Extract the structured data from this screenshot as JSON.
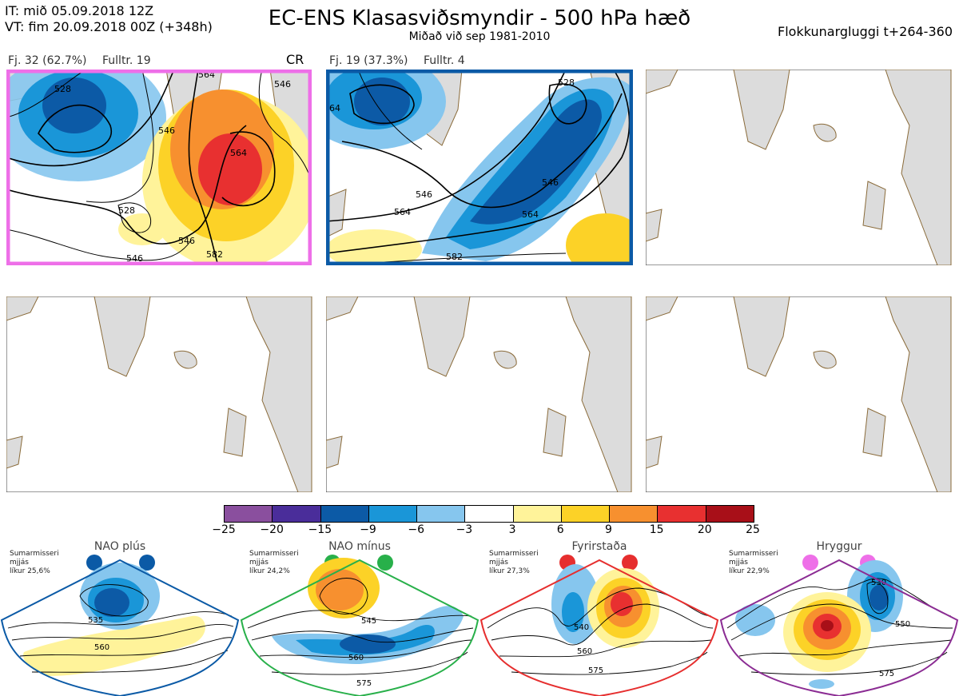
{
  "header": {
    "it_line": "IT: mið 05.09.2018 12Z",
    "vt_line": "VT: fim 20.09.2018 00Z  (+348h)",
    "title": "EC-ENS Klasasviðsmyndir - 500 hPa hæð",
    "subtitle": "Miðað við sep 1981-2010",
    "window": "Flokkunargluggi t+264-360"
  },
  "panels": [
    {
      "label": "Fj. 32 (62.7%)",
      "fulltr": "Fulltr. 19",
      "tag": "CR",
      "frame_color": "#ee6fe8",
      "contour_labels": [
        "528",
        "546",
        "564",
        "528",
        "546",
        "546",
        "564",
        "582",
        "546"
      ]
    },
    {
      "label": "Fj. 19 (37.3%)",
      "fulltr": "Fulltr. 4",
      "tag": "",
      "frame_color": "#0b5aa6",
      "contour_labels": [
        "528",
        "546",
        "546",
        "564",
        "564",
        "582",
        "64"
      ]
    }
  ],
  "colorbar": {
    "ticks": [
      "−25",
      "−20",
      "−15",
      "−9",
      "−6",
      "−3",
      "3",
      "6",
      "9",
      "15",
      "20",
      "25"
    ],
    "colors": [
      "#8a4f9e",
      "#4a2d9a",
      "#0c5aa6",
      "#1a96d8",
      "#86c6ee",
      "#ffffff",
      "#fff39a",
      "#fcd227",
      "#f7902f",
      "#e83030",
      "#a80f18"
    ]
  },
  "regimes": [
    {
      "name": "NAO plús",
      "note": [
        "Sumarmisseri",
        "mjjás",
        "líkur 25,6%"
      ],
      "color": "#0b5aa6",
      "contour_labels": [
        "535",
        "560"
      ]
    },
    {
      "name": "NAO mínus",
      "note": [
        "Sumarmisseri",
        "mjjás",
        "líkur 24,2%"
      ],
      "color": "#28b04a",
      "contour_labels": [
        "545",
        "560",
        "575"
      ]
    },
    {
      "name": "Fyrirstaða",
      "note": [
        "Sumarmisseri",
        "mjjás",
        "líkur 27,3%"
      ],
      "color": "#e62e2e",
      "contour_labels": [
        "540",
        "560",
        "575"
      ]
    },
    {
      "name": "Hryggur",
      "note": [
        "Sumarmisseri",
        "mjjás",
        "líkur 22,9%"
      ],
      "color": "#8b2c93",
      "dot_color": "#ee6fe8",
      "contour_labels": [
        "530",
        "550",
        "575"
      ]
    }
  ]
}
